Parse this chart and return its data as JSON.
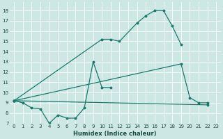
{
  "bg_color": "#cde8e4",
  "line_color": "#1a7a6e",
  "xlabel": "Humidex (Indice chaleur)",
  "curve1_x": [
    0,
    1,
    2,
    3,
    4,
    5,
    6,
    7,
    8,
    9,
    10,
    11
  ],
  "curve1_y": [
    9.2,
    9.0,
    8.5,
    8.4,
    7.0,
    7.8,
    7.5,
    7.5,
    8.5,
    13.0,
    10.5,
    10.5
  ],
  "curve2_x": [
    0,
    10,
    11,
    12,
    14,
    15,
    16,
    17,
    18,
    19
  ],
  "curve2_y": [
    9.2,
    15.2,
    15.2,
    15.0,
    16.8,
    17.5,
    18.0,
    18.0,
    16.5,
    14.7
  ],
  "curve3_x": [
    0,
    19,
    20,
    21,
    22
  ],
  "curve3_y": [
    9.2,
    12.8,
    9.5,
    9.0,
    9.0
  ],
  "curve4_x": [
    0,
    22
  ],
  "curve4_y": [
    9.2,
    8.8
  ],
  "xlim": [
    -0.5,
    23.5
  ],
  "ylim": [
    7,
    18.8
  ],
  "yticks": [
    7,
    8,
    9,
    10,
    11,
    12,
    13,
    14,
    15,
    16,
    17,
    18
  ],
  "xticks": [
    0,
    1,
    2,
    3,
    4,
    5,
    6,
    7,
    8,
    9,
    10,
    11,
    12,
    13,
    14,
    15,
    16,
    17,
    18,
    19,
    20,
    21,
    22,
    23
  ],
  "tick_fontsize": 5.0,
  "xlabel_fontsize": 6.0,
  "linewidth": 0.9,
  "markersize": 1.8
}
